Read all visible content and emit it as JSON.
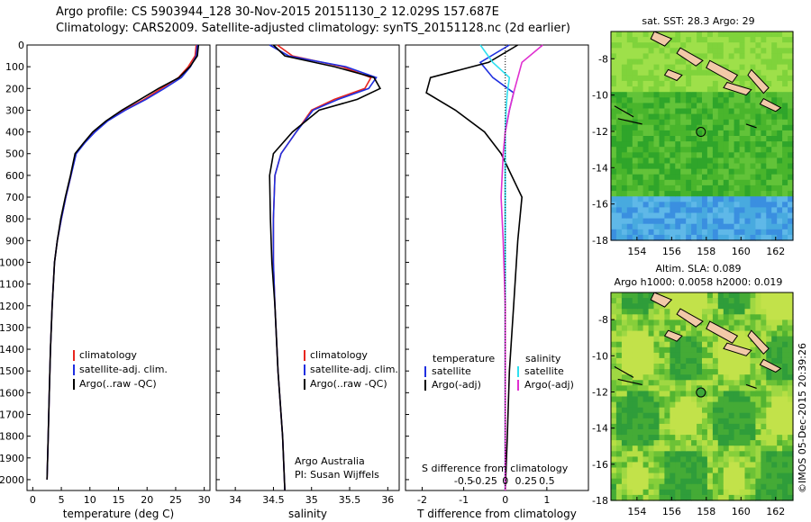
{
  "header": {
    "line1": "Argo profile: CS 5903944_128 30-Nov-2015 20151130_2 12.029S 157.687E",
    "line2": "Climatology: CARS2009. Satellite-adjusted climatology: synTS_20151128.nc (2d earlier)"
  },
  "credit": "©IMOS 05-Dec-2015 20:39:26",
  "colors": {
    "climatology": "#e8261f",
    "satellite": "#1f2fe0",
    "argo": "#000000",
    "cyan": "#2fe0f0",
    "magenta": "#e030d0"
  },
  "chart_data": [
    {
      "type": "line",
      "name": "temperature",
      "xlabel": "temperature (deg C)",
      "ylabel": "",
      "xlim": [
        -1,
        31
      ],
      "ylim": [
        0,
        2050
      ],
      "xticks": [
        0,
        5,
        10,
        15,
        20,
        25,
        30
      ],
      "yticks": [
        0,
        100,
        200,
        300,
        400,
        500,
        600,
        700,
        800,
        900,
        1000,
        1100,
        1200,
        1300,
        1400,
        1500,
        1600,
        1700,
        1800,
        1900,
        2000
      ],
      "legend": [
        "climatology",
        "satellite-adj. clim.",
        "Argo(..raw -QC)"
      ],
      "series": [
        {
          "name": "climatology",
          "x": [
            28.6,
            28.4,
            27.2,
            25.5,
            22.5,
            19.5,
            16.0,
            13.0,
            10.8,
            9.0,
            7.5,
            6.7,
            5.8,
            5.0,
            4.3,
            3.8,
            3.4,
            3.1,
            2.9,
            2.7,
            2.5
          ],
          "y": [
            0,
            50,
            100,
            150,
            200,
            250,
            300,
            350,
            400,
            450,
            500,
            600,
            700,
            800,
            900,
            1000,
            1200,
            1400,
            1600,
            1800,
            2000
          ]
        },
        {
          "name": "satellite-adj. clim.",
          "x": [
            28.8,
            28.6,
            27.6,
            26.0,
            23.0,
            19.8,
            16.2,
            13.1,
            10.9,
            9.1,
            7.6,
            6.7,
            5.8,
            5.0,
            4.3,
            3.8,
            3.4,
            3.1,
            2.9,
            2.7,
            2.5
          ],
          "y": [
            0,
            50,
            100,
            150,
            200,
            250,
            300,
            350,
            400,
            450,
            500,
            600,
            700,
            800,
            900,
            1000,
            1200,
            1400,
            1600,
            1800,
            2000
          ]
        },
        {
          "name": "Argo(..raw -QC)",
          "x": [
            29.0,
            28.8,
            27.5,
            25.6,
            22.0,
            18.8,
            15.6,
            12.8,
            10.5,
            8.9,
            7.4,
            6.6,
            5.7,
            4.9,
            4.3,
            3.8,
            3.4,
            3.1,
            2.9,
            2.7,
            2.5
          ],
          "y": [
            0,
            50,
            100,
            150,
            200,
            250,
            300,
            350,
            400,
            450,
            500,
            600,
            700,
            800,
            900,
            1000,
            1200,
            1400,
            1600,
            1800,
            2000
          ]
        }
      ]
    },
    {
      "type": "line",
      "name": "salinity",
      "xlabel": "salinity",
      "xlim": [
        33.75,
        36.15
      ],
      "ylim": [
        0,
        2050
      ],
      "xticks": [
        34,
        34.5,
        35,
        35.5,
        36
      ],
      "legend": [
        "climatology",
        "satellite-adj. clim.",
        "Argo(..raw -QC)"
      ],
      "annotation": [
        "Argo Australia",
        "PI: Susan Wijffels"
      ],
      "series": [
        {
          "name": "climatology",
          "x": [
            34.55,
            34.75,
            35.4,
            35.78,
            35.7,
            35.3,
            35.0,
            34.8,
            34.6,
            34.52,
            34.5,
            34.5,
            34.52,
            34.56,
            34.62,
            34.65
          ],
          "y": [
            0,
            50,
            100,
            150,
            200,
            250,
            300,
            400,
            500,
            600,
            800,
            1000,
            1200,
            1500,
            1800,
            2050
          ]
        },
        {
          "name": "satellite-adj. clim.",
          "x": [
            34.45,
            34.7,
            35.45,
            35.85,
            35.75,
            35.35,
            35.02,
            34.8,
            34.6,
            34.52,
            34.5,
            34.5,
            34.52,
            34.56,
            34.62,
            34.65
          ],
          "y": [
            0,
            50,
            100,
            150,
            200,
            250,
            300,
            400,
            500,
            600,
            800,
            1000,
            1200,
            1500,
            1800,
            2050
          ]
        },
        {
          "name": "Argo(..raw -QC)",
          "x": [
            34.5,
            34.65,
            35.3,
            35.82,
            35.9,
            35.6,
            35.1,
            34.75,
            34.5,
            34.45,
            34.46,
            34.48,
            34.52,
            34.56,
            34.62,
            34.65
          ],
          "y": [
            0,
            50,
            100,
            150,
            200,
            250,
            300,
            400,
            500,
            600,
            800,
            1000,
            1200,
            1500,
            1800,
            2050
          ]
        }
      ]
    },
    {
      "type": "line",
      "name": "difference",
      "xlabel": "T difference from climatology",
      "top_label": "S difference from climatology",
      "xlim": [
        -2.4,
        2.0
      ],
      "ylim": [
        0,
        2050
      ],
      "xticks": [
        -2,
        -1,
        0,
        1
      ],
      "xtick_labels": [
        "-2",
        "-1",
        "0",
        "1"
      ],
      "sticks": [
        -0.5,
        -0.25,
        0,
        0.25,
        0.5
      ],
      "stick_labels": [
        "-0.5",
        "-0.25",
        "0",
        "0.25",
        "0.5"
      ],
      "legend_groups": [
        "temperature",
        "salinity"
      ],
      "legend": [
        "satellite",
        "Argo(-adj)",
        "satellite",
        "Argo(-adj)"
      ],
      "series": [
        {
          "name": "temperature satellite",
          "x": [
            0.1,
            -0.6,
            -0.3,
            0.2,
            0.1,
            0.0,
            0.0,
            0.0,
            0.0,
            0.0,
            0.0,
            0.0,
            0.0
          ],
          "y": [
            0,
            80,
            150,
            220,
            300,
            400,
            500,
            700,
            900,
            1200,
            1500,
            1800,
            2050
          ]
        },
        {
          "name": "temperature Argo(-adj)",
          "x": [
            0.3,
            -0.4,
            -1.8,
            -1.9,
            -1.2,
            -0.5,
            -0.1,
            0.4,
            0.3,
            0.2,
            0.1,
            0.05,
            0.0
          ],
          "y": [
            0,
            80,
            150,
            220,
            300,
            400,
            500,
            700,
            900,
            1200,
            1500,
            1800,
            2050
          ]
        },
        {
          "name": "salinity satellite",
          "x": [
            -0.6,
            -0.3,
            0.1,
            0.05,
            0.02,
            0.0,
            0.0,
            0.0,
            0.0,
            0.0,
            0.0,
            0.0,
            0.0
          ],
          "y": [
            0,
            80,
            150,
            220,
            300,
            400,
            500,
            700,
            900,
            1200,
            1500,
            1800,
            2050
          ]
        },
        {
          "name": "salinity Argo(-adj)",
          "x": [
            0.9,
            0.4,
            0.3,
            0.2,
            0.1,
            0.0,
            -0.05,
            -0.1,
            -0.05,
            0.0,
            0.0,
            0.0,
            0.0
          ],
          "y": [
            0,
            80,
            150,
            220,
            300,
            400,
            500,
            700,
            900,
            1200,
            1500,
            1800,
            2050
          ]
        }
      ]
    },
    {
      "type": "heatmap",
      "name": "sst map",
      "title": "sat. SST: 28.3 Argo: 29",
      "xticks": [
        154,
        156,
        158,
        160,
        162
      ],
      "yticks": [
        -8,
        -10,
        -12,
        -14,
        -16,
        -18
      ],
      "xlim": [
        152.5,
        163
      ],
      "ylim": [
        -18,
        -6.5
      ],
      "marker": {
        "lon": 157.687,
        "lat": -12.029
      }
    },
    {
      "type": "heatmap",
      "name": "sla map",
      "title": "Altim. SLA: 0.089",
      "subtitle": "Argo h1000: 0.0058 h2000: 0.019",
      "xticks": [
        154,
        156,
        158,
        160,
        162
      ],
      "yticks": [
        -8,
        -10,
        -12,
        -14,
        -16,
        -18
      ],
      "xlim": [
        152.5,
        163
      ],
      "ylim": [
        -18,
        -6.5
      ],
      "marker": {
        "lon": 157.687,
        "lat": -12.029
      }
    }
  ]
}
